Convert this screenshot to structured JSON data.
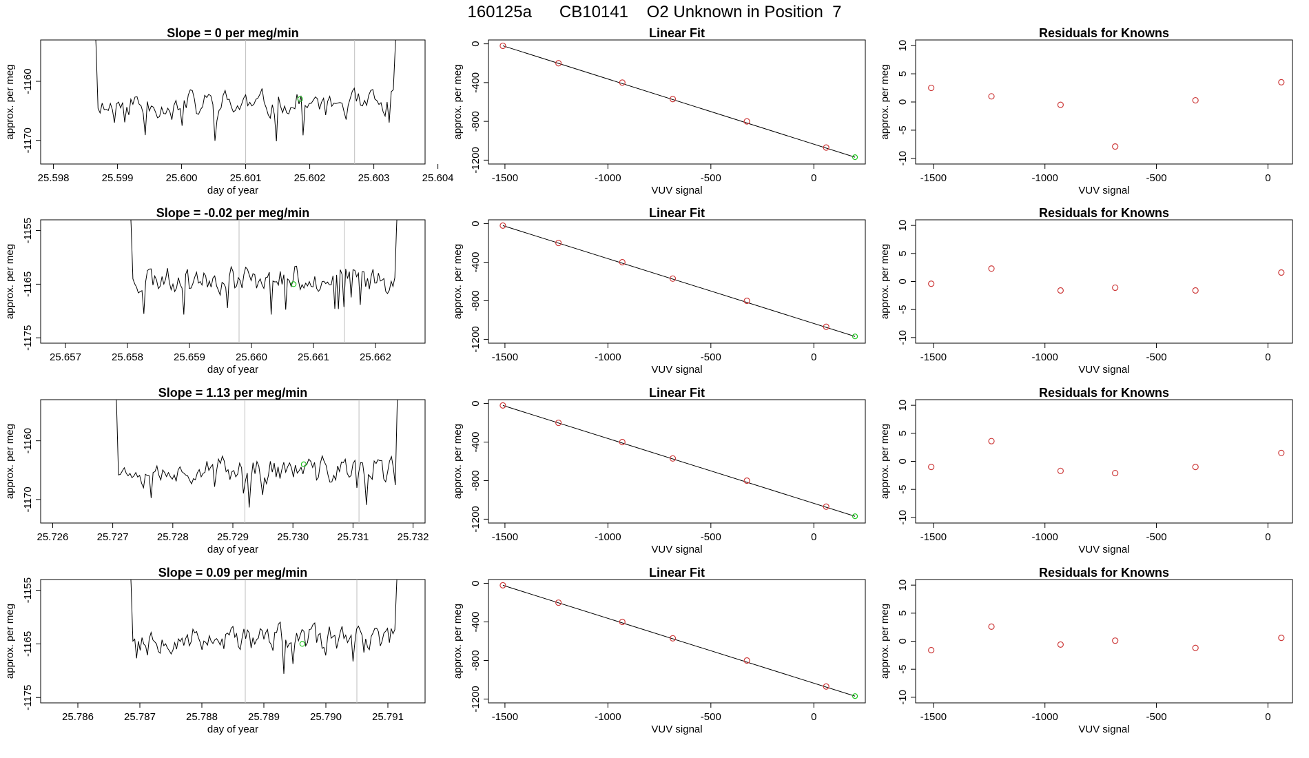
{
  "page": {
    "title": "160125a      CB10141    O2 Unknown in Position  7"
  },
  "chart_data": [
    {
      "panel": "row1-timeseries",
      "type": "line",
      "title": "Slope =  0  per meg/min",
      "xlabel": "day of year",
      "ylabel": "approx. per meg",
      "xlim": [
        25.5978,
        25.6038
      ],
      "ylim": [
        -1174,
        -1153
      ],
      "xticks": [
        "25.598",
        "25.599",
        "25.600",
        "25.601",
        "25.602",
        "25.603",
        "25.604"
      ],
      "yticks": [
        "-1160",
        "-1170"
      ],
      "seed": 11,
      "trace_x": [
        25.5986,
        25.6034
      ],
      "trace_mean": -1164,
      "trace_amp": 2.6,
      "vlines": [
        25.601,
        25.6027
      ],
      "highlight": {
        "x": 25.60185,
        "y": -1163
      }
    },
    {
      "panel": "row1-linear-fit",
      "type": "scatter",
      "title": "Linear Fit",
      "xlabel": "VUV signal",
      "ylabel": "approx. per meg",
      "xlim": [
        -1580,
        250
      ],
      "ylim": [
        -1240,
        40
      ],
      "xticks": [
        "-1500",
        "-1000",
        "-500",
        "0"
      ],
      "yticks": [
        "0",
        "-400",
        "-800",
        "-1200"
      ],
      "x": [
        -1510,
        -1240,
        -930,
        -685,
        -325,
        60
      ],
      "y": [
        -20,
        -200,
        -400,
        -570,
        -800,
        -1070
      ],
      "fit_line": {
        "x": [
          -1510,
          200
        ],
        "y": [
          -20,
          -1170
        ]
      },
      "highlight": {
        "x": 200,
        "y": -1170
      }
    },
    {
      "panel": "row1-residuals",
      "type": "scatter",
      "title": "Residuals for Knowns",
      "xlabel": "VUV signal",
      "ylabel": "approx. per meg",
      "xlim": [
        -1580,
        110
      ],
      "ylim": [
        -11,
        11
      ],
      "xticks": [
        "-1500",
        "-1000",
        "-500",
        "0"
      ],
      "yticks": [
        "10",
        "5",
        "0",
        "-5",
        "-10"
      ],
      "x": [
        -1510,
        -1240,
        -930,
        -685,
        -325,
        60
      ],
      "y": [
        2.5,
        1.0,
        -0.5,
        -7.9,
        0.3,
        3.5
      ]
    },
    {
      "panel": "row2-timeseries",
      "type": "line",
      "title": "Slope =  -0.02  per meg/min",
      "xlabel": "day of year",
      "ylabel": "approx. per meg",
      "xlim": [
        25.6566,
        25.6628
      ],
      "ylim": [
        -1176,
        -1153
      ],
      "xticks": [
        "25.657",
        "25.658",
        "25.659",
        "25.660",
        "25.661",
        "25.662"
      ],
      "yticks": [
        "-1155",
        "-1165",
        "-1175"
      ],
      "seed": 23,
      "trace_x": [
        25.658,
        25.6624
      ],
      "trace_mean": -1164,
      "trace_amp": 3.0,
      "vlines": [
        25.6598,
        25.6615
      ],
      "highlight": {
        "x": 25.66068,
        "y": -1165
      }
    },
    {
      "panel": "row2-linear-fit",
      "type": "scatter",
      "title": "Linear Fit",
      "xlabel": "VUV signal",
      "ylabel": "approx. per meg",
      "xlim": [
        -1580,
        250
      ],
      "ylim": [
        -1240,
        40
      ],
      "xticks": [
        "-1500",
        "-1000",
        "-500",
        "0"
      ],
      "yticks": [
        "0",
        "-400",
        "-800",
        "-1200"
      ],
      "x": [
        -1510,
        -1240,
        -930,
        -685,
        -325,
        60
      ],
      "y": [
        -20,
        -200,
        -400,
        -570,
        -800,
        -1070
      ],
      "fit_line": {
        "x": [
          -1510,
          200
        ],
        "y": [
          -20,
          -1170
        ]
      },
      "highlight": {
        "x": 200,
        "y": -1170
      }
    },
    {
      "panel": "row2-residuals",
      "type": "scatter",
      "title": "Residuals for Knowns",
      "xlabel": "VUV signal",
      "ylabel": "approx. per meg",
      "xlim": [
        -1580,
        110
      ],
      "ylim": [
        -11,
        11
      ],
      "xticks": [
        "-1500",
        "-1000",
        "-500",
        "0"
      ],
      "yticks": [
        "10",
        "5",
        "0",
        "-5",
        "-10"
      ],
      "x": [
        -1510,
        -1240,
        -930,
        -685,
        -325,
        60
      ],
      "y": [
        -0.4,
        2.3,
        -1.6,
        -1.1,
        -1.6,
        1.6
      ]
    },
    {
      "panel": "row3-timeseries",
      "type": "line",
      "title": "Slope =  1.13  per meg/min",
      "xlabel": "day of year",
      "ylabel": "approx. per meg",
      "xlim": [
        25.7258,
        25.7322
      ],
      "ylim": [
        -1174,
        -1153
      ],
      "xticks": [
        "25.726",
        "25.727",
        "25.728",
        "25.729",
        "25.730",
        "25.731",
        "25.732"
      ],
      "yticks": [
        "-1160",
        "-1170"
      ],
      "seed": 37,
      "trace_x": [
        25.727,
        25.7318
      ],
      "trace_mean": -1165,
      "trace_amp": 2.7,
      "vlines": [
        25.7292,
        25.7311
      ],
      "highlight": {
        "x": 25.73018,
        "y": -1164
      }
    },
    {
      "panel": "row3-linear-fit",
      "type": "scatter",
      "title": "Linear Fit",
      "xlabel": "VUV signal",
      "ylabel": "approx. per meg",
      "xlim": [
        -1580,
        250
      ],
      "ylim": [
        -1240,
        40
      ],
      "xticks": [
        "-1500",
        "-1000",
        "-500",
        "0"
      ],
      "yticks": [
        "0",
        "-400",
        "-800",
        "-1200"
      ],
      "x": [
        -1510,
        -1240,
        -930,
        -685,
        -325,
        60
      ],
      "y": [
        -20,
        -200,
        -400,
        -570,
        -800,
        -1070
      ],
      "fit_line": {
        "x": [
          -1510,
          200
        ],
        "y": [
          -20,
          -1170
        ]
      },
      "highlight": {
        "x": 200,
        "y": -1170
      }
    },
    {
      "panel": "row3-residuals",
      "type": "scatter",
      "title": "Residuals for Knowns",
      "xlabel": "VUV signal",
      "ylabel": "approx. per meg",
      "xlim": [
        -1580,
        110
      ],
      "ylim": [
        -11,
        11
      ],
      "xticks": [
        "-1500",
        "-1000",
        "-500",
        "0"
      ],
      "yticks": [
        "10",
        "5",
        "0",
        "-5",
        "-10"
      ],
      "x": [
        -1510,
        -1240,
        -930,
        -685,
        -325,
        60
      ],
      "y": [
        -1.0,
        3.6,
        -1.7,
        -2.1,
        -1.0,
        1.5
      ]
    },
    {
      "panel": "row4-timeseries",
      "type": "line",
      "title": "Slope =  0.09  per meg/min",
      "xlabel": "day of year",
      "ylabel": "approx. per meg",
      "xlim": [
        25.7854,
        25.7916
      ],
      "ylim": [
        -1176,
        -1153
      ],
      "xticks": [
        "25.786",
        "25.787",
        "25.788",
        "25.789",
        "25.790",
        "25.791"
      ],
      "yticks": [
        "-1155",
        "-1165",
        "-1175"
      ],
      "seed": 53,
      "trace_x": [
        25.7868,
        25.7912
      ],
      "trace_mean": -1164,
      "trace_amp": 3.0,
      "vlines": [
        25.7887,
        25.7905
      ],
      "highlight": {
        "x": 25.78962,
        "y": -1165
      }
    },
    {
      "panel": "row4-linear-fit",
      "type": "scatter",
      "title": "Linear Fit",
      "xlabel": "VUV signal",
      "ylabel": "approx. per meg",
      "xlim": [
        -1580,
        250
      ],
      "ylim": [
        -1240,
        40
      ],
      "xticks": [
        "-1500",
        "-1000",
        "-500",
        "0"
      ],
      "yticks": [
        "0",
        "-400",
        "-800",
        "-1200"
      ],
      "x": [
        -1510,
        -1240,
        -930,
        -685,
        -325,
        60
      ],
      "y": [
        -20,
        -200,
        -400,
        -570,
        -800,
        -1070
      ],
      "fit_line": {
        "x": [
          -1510,
          200
        ],
        "y": [
          -20,
          -1170
        ]
      },
      "highlight": {
        "x": 200,
        "y": -1170
      }
    },
    {
      "panel": "row4-residuals",
      "type": "scatter",
      "title": "Residuals for Knowns",
      "xlabel": "VUV signal",
      "ylabel": "approx. per meg",
      "xlim": [
        -1580,
        110
      ],
      "ylim": [
        -11,
        11
      ],
      "xticks": [
        "-1500",
        "-1000",
        "-500",
        "0"
      ],
      "yticks": [
        "10",
        "5",
        "0",
        "-5",
        "-10"
      ],
      "x": [
        -1510,
        -1240,
        -930,
        -685,
        -325,
        60
      ],
      "y": [
        -1.6,
        2.6,
        -0.6,
        0.1,
        -1.2,
        0.6
      ]
    }
  ],
  "colors": {
    "point": "#cd3b3b",
    "highlight": "#22c522",
    "vline": "#bebebe",
    "line": "#000000"
  }
}
